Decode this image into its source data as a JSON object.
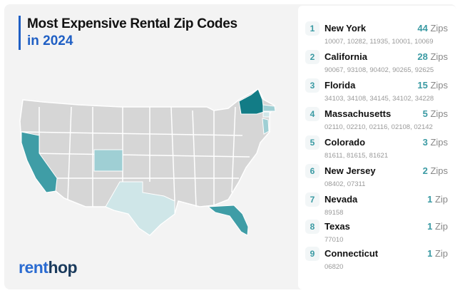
{
  "title": {
    "line1": "Most Expensive Rental Zip Codes",
    "line2": "in 2024"
  },
  "brand": {
    "part1": "rent",
    "part2": "hop"
  },
  "chart_data": {
    "type": "choropleth-map",
    "title": "Most Expensive Rental Zip Codes in 2024",
    "colors": {
      "base": "#d6d6d6",
      "high": "#127c86",
      "mid": "#3f9da6",
      "low": "#9fcfd4",
      "lowest": "#cfe6e8"
    },
    "rankings": [
      {
        "rank": "1",
        "state": "New York",
        "count": "44",
        "unit": "Zips",
        "zips": "10007, 10282, 11935, 10001, 10069"
      },
      {
        "rank": "2",
        "state": "California",
        "count": "28",
        "unit": "Zips",
        "zips": "90067, 93108, 90402, 90265, 92625"
      },
      {
        "rank": "3",
        "state": "Florida",
        "count": "15",
        "unit": "Zips",
        "zips": "34103, 34108, 34145, 34102, 34228"
      },
      {
        "rank": "4",
        "state": "Massachusetts",
        "count": "5",
        "unit": "Zips",
        "zips": "02110, 02210, 02116, 02108, 02142"
      },
      {
        "rank": "5",
        "state": "Colorado",
        "count": "3",
        "unit": "Zips",
        "zips": "81611, 81615, 81621"
      },
      {
        "rank": "6",
        "state": "New Jersey",
        "count": "2",
        "unit": "Zips",
        "zips": "08402, 07311"
      },
      {
        "rank": "7",
        "state": "Nevada",
        "count": "1",
        "unit": "Zip",
        "zips": "89158"
      },
      {
        "rank": "8",
        "state": "Texas",
        "count": "1",
        "unit": "Zip",
        "zips": "77010"
      },
      {
        "rank": "9",
        "state": "Connecticut",
        "count": "1",
        "unit": "Zip",
        "zips": "06820"
      }
    ]
  }
}
